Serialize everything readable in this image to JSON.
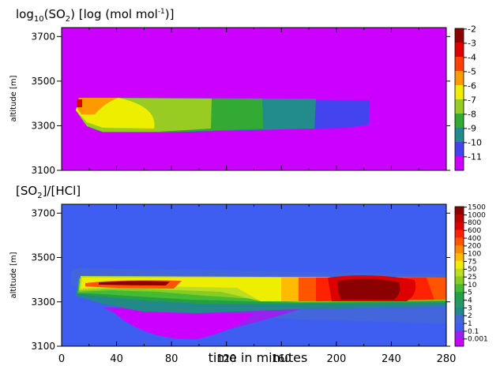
{
  "chart_data": [
    {
      "type": "heatmap",
      "title": {
        "prefix": "log",
        "sub": "10",
        "mid": "(SO",
        "sub2": "2",
        "suffix": ") [log (mol mol",
        "sup": "-1",
        "end": ")]"
      },
      "ylabel": "altitude [m]",
      "yticks": [
        "3100",
        "3300",
        "3500",
        "3700"
      ],
      "ylim": [
        3100,
        3740
      ],
      "xlim": [
        0,
        280
      ],
      "colorbar_labels": [
        "-2",
        "-3",
        "-4",
        "-5",
        "-6",
        "-7",
        "-8",
        "-9",
        "-10",
        "-11"
      ],
      "colors": [
        "#8b0000",
        "#dd0000",
        "#ff4000",
        "#ff9900",
        "#eeee00",
        "#99cc22",
        "#33aa33",
        "#228b8b",
        "#4444ee",
        "#cc00ff"
      ],
      "background_level": "-11",
      "plume": [
        {
          "level": "-4",
          "x": [
            8,
            13
          ],
          "y": [
            3360,
            3410
          ]
        },
        {
          "level": "-5",
          "x": [
            13,
            40
          ],
          "y": [
            3320,
            3410
          ]
        },
        {
          "level": "-6",
          "x": [
            40,
            80
          ],
          "y": [
            3290,
            3400
          ]
        },
        {
          "level": "-7",
          "x": [
            80,
            108
          ],
          "y": [
            3280,
            3400
          ]
        },
        {
          "level": "-8",
          "x": [
            108,
            145
          ],
          "y": [
            3290,
            3400
          ]
        },
        {
          "level": "-9",
          "x": [
            145,
            185
          ],
          "y": [
            3285,
            3405
          ]
        },
        {
          "level": "-10",
          "x": [
            185,
            228
          ],
          "y": [
            3290,
            3400
          ]
        }
      ]
    },
    {
      "type": "heatmap",
      "title": {
        "prefix": "[SO",
        "sub": "2",
        "suffix": "]/[HCl]"
      },
      "ylabel": "altitude [m]",
      "xlabel": "time in minutes",
      "yticks": [
        "3100",
        "3300",
        "3500",
        "3700"
      ],
      "xticks": [
        "0",
        "40",
        "80",
        "120",
        "160",
        "200",
        "240",
        "280"
      ],
      "ylim": [
        3100,
        3740
      ],
      "xlim": [
        0,
        280
      ],
      "colorbar_labels": [
        "1500",
        "1000",
        "800",
        "600",
        "400",
        "200",
        "100",
        "75",
        "50",
        "25",
        "10",
        "5",
        "4",
        "3",
        "2",
        "1",
        "0.1",
        "0.001"
      ],
      "colors": [
        "#8b0000",
        "#bb0000",
        "#dd0000",
        "#ff2200",
        "#ff5500",
        "#ff8800",
        "#ffbb00",
        "#eeee00",
        "#bbdd22",
        "#88cc22",
        "#44bb33",
        "#22a045",
        "#229966",
        "#228888",
        "#4466dd",
        "#3d5ef0",
        "#9922ee",
        "#cc00ff"
      ],
      "background_level": "1",
      "features": [
        {
          "level": "2",
          "x": [
            0,
            280
          ],
          "y": [
            3230,
            3440
          ]
        },
        {
          "level": "0.1",
          "x": [
            40,
            180
          ],
          "y": [
            3110,
            3280
          ]
        },
        {
          "level": "0.001",
          "x": [
            60,
            110
          ],
          "y": [
            3110,
            3180
          ]
        },
        {
          "level": "10",
          "x": [
            5,
            280
          ],
          "y": [
            3290,
            3410
          ]
        },
        {
          "level": "50",
          "x": [
            20,
            280
          ],
          "y": [
            3300,
            3405
          ]
        },
        {
          "level": "200",
          "x": [
            190,
            280
          ],
          "y": [
            3300,
            3400
          ]
        },
        {
          "level": "800",
          "x": [
            200,
            250
          ],
          "y": [
            3310,
            3390
          ]
        },
        {
          "level": "1500",
          "x": [
            205,
            235
          ],
          "y": [
            3320,
            3380
          ]
        }
      ]
    }
  ]
}
